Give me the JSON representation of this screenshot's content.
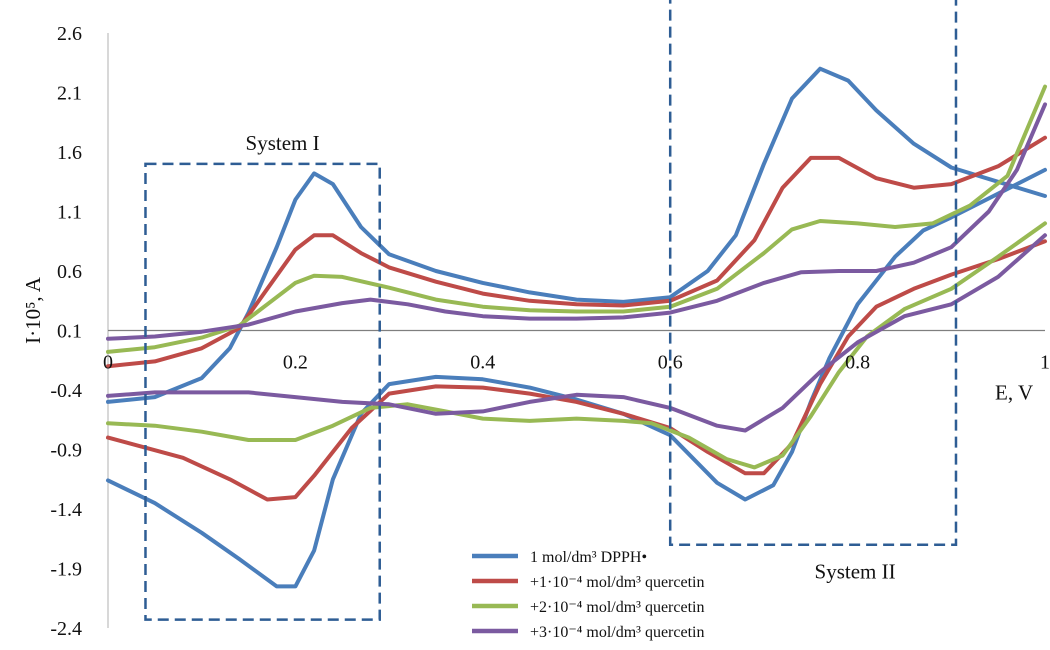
{
  "chart_data": {
    "type": "line",
    "title": "",
    "xlabel": "E, V",
    "ylabel": "I·10⁵, A",
    "xlim": [
      0,
      1
    ],
    "ylim": [
      -2.4,
      2.6
    ],
    "x_ticks": [
      0,
      0.2,
      0.4,
      0.6,
      0.8,
      1
    ],
    "x_tick_labels": [
      "0",
      "0.2",
      "0.4",
      "0.6",
      "0.8",
      "1"
    ],
    "y_ticks": [
      2.6,
      2.1,
      1.6,
      1.1,
      0.6,
      0.1,
      -0.4,
      -0.9,
      -1.4,
      -1.9,
      -2.4
    ],
    "y_tick_labels": [
      "2.6",
      "2.1",
      "1.6",
      "1.1",
      "0.6",
      "0.1",
      "-0.4",
      "-0.9",
      "-1.4",
      "-1.9",
      "-2.4"
    ],
    "grid": false,
    "legend_position": "bottom-center",
    "annotations": [
      {
        "label": "System I",
        "box": {
          "x": [
            0.04,
            0.29
          ],
          "y": [
            -2.33,
            1.5
          ]
        }
      },
      {
        "label": "System II",
        "box": {
          "x": [
            0.6,
            0.905
          ],
          "y": [
            -1.7,
            2.95
          ]
        }
      }
    ],
    "series": [
      {
        "name": "1 mol/dm³ DPPH•",
        "color": "#4a7ebb",
        "forward": [
          [
            0,
            -0.5
          ],
          [
            0.05,
            -0.46
          ],
          [
            0.1,
            -0.3
          ],
          [
            0.13,
            -0.05
          ],
          [
            0.15,
            0.25
          ],
          [
            0.18,
            0.8
          ],
          [
            0.2,
            1.2
          ],
          [
            0.22,
            1.42
          ],
          [
            0.24,
            1.33
          ],
          [
            0.27,
            0.97
          ],
          [
            0.3,
            0.74
          ],
          [
            0.35,
            0.6
          ],
          [
            0.4,
            0.5
          ],
          [
            0.45,
            0.42
          ],
          [
            0.5,
            0.36
          ],
          [
            0.55,
            0.34
          ],
          [
            0.6,
            0.38
          ],
          [
            0.64,
            0.6
          ],
          [
            0.67,
            0.9
          ],
          [
            0.7,
            1.5
          ],
          [
            0.73,
            2.05
          ],
          [
            0.76,
            2.3
          ],
          [
            0.79,
            2.2
          ],
          [
            0.82,
            1.95
          ],
          [
            0.86,
            1.67
          ],
          [
            0.9,
            1.47
          ],
          [
            0.95,
            1.35
          ],
          [
            1,
            1.23
          ]
        ],
        "reverse": [
          [
            1,
            1.45
          ],
          [
            0.95,
            1.25
          ],
          [
            0.9,
            1.05
          ],
          [
            0.87,
            0.94
          ],
          [
            0.84,
            0.72
          ],
          [
            0.8,
            0.32
          ],
          [
            0.77,
            -0.13
          ],
          [
            0.75,
            -0.5
          ],
          [
            0.73,
            -0.92
          ],
          [
            0.71,
            -1.2
          ],
          [
            0.68,
            -1.32
          ],
          [
            0.65,
            -1.18
          ],
          [
            0.6,
            -0.78
          ],
          [
            0.55,
            -0.6
          ],
          [
            0.5,
            -0.48
          ],
          [
            0.45,
            -0.38
          ],
          [
            0.4,
            -0.31
          ],
          [
            0.35,
            -0.29
          ],
          [
            0.3,
            -0.35
          ],
          [
            0.27,
            -0.6
          ],
          [
            0.24,
            -1.15
          ],
          [
            0.22,
            -1.75
          ],
          [
            0.2,
            -2.05
          ],
          [
            0.18,
            -2.05
          ],
          [
            0.14,
            -1.82
          ],
          [
            0.1,
            -1.6
          ],
          [
            0.05,
            -1.35
          ],
          [
            0,
            -1.16
          ]
        ]
      },
      {
        "name": "+1·10⁻⁴ mol/dm³ quercetin",
        "color": "#be4b48",
        "forward": [
          [
            0,
            -0.2
          ],
          [
            0.05,
            -0.16
          ],
          [
            0.1,
            -0.05
          ],
          [
            0.14,
            0.12
          ],
          [
            0.17,
            0.45
          ],
          [
            0.2,
            0.78
          ],
          [
            0.22,
            0.9
          ],
          [
            0.24,
            0.9
          ],
          [
            0.27,
            0.75
          ],
          [
            0.3,
            0.63
          ],
          [
            0.35,
            0.51
          ],
          [
            0.4,
            0.41
          ],
          [
            0.45,
            0.35
          ],
          [
            0.5,
            0.32
          ],
          [
            0.55,
            0.31
          ],
          [
            0.6,
            0.35
          ],
          [
            0.65,
            0.52
          ],
          [
            0.69,
            0.86
          ],
          [
            0.72,
            1.3
          ],
          [
            0.75,
            1.55
          ],
          [
            0.78,
            1.55
          ],
          [
            0.82,
            1.38
          ],
          [
            0.86,
            1.3
          ],
          [
            0.9,
            1.33
          ],
          [
            0.95,
            1.48
          ],
          [
            1,
            1.72
          ]
        ],
        "reverse": [
          [
            1,
            0.85
          ],
          [
            0.95,
            0.7
          ],
          [
            0.9,
            0.57
          ],
          [
            0.86,
            0.45
          ],
          [
            0.82,
            0.3
          ],
          [
            0.79,
            0.05
          ],
          [
            0.76,
            -0.35
          ],
          [
            0.73,
            -0.85
          ],
          [
            0.7,
            -1.1
          ],
          [
            0.68,
            -1.1
          ],
          [
            0.64,
            -0.92
          ],
          [
            0.6,
            -0.72
          ],
          [
            0.55,
            -0.6
          ],
          [
            0.5,
            -0.5
          ],
          [
            0.45,
            -0.43
          ],
          [
            0.4,
            -0.38
          ],
          [
            0.35,
            -0.37
          ],
          [
            0.3,
            -0.43
          ],
          [
            0.26,
            -0.72
          ],
          [
            0.22,
            -1.12
          ],
          [
            0.2,
            -1.3
          ],
          [
            0.17,
            -1.32
          ],
          [
            0.13,
            -1.15
          ],
          [
            0.08,
            -0.97
          ],
          [
            0,
            -0.8
          ]
        ]
      },
      {
        "name": "+2·10⁻⁴ mol/dm³ quercetin",
        "color": "#98b954",
        "forward": [
          [
            0,
            -0.08
          ],
          [
            0.05,
            -0.04
          ],
          [
            0.1,
            0.04
          ],
          [
            0.14,
            0.14
          ],
          [
            0.17,
            0.32
          ],
          [
            0.2,
            0.5
          ],
          [
            0.22,
            0.56
          ],
          [
            0.25,
            0.55
          ],
          [
            0.3,
            0.46
          ],
          [
            0.35,
            0.36
          ],
          [
            0.4,
            0.3
          ],
          [
            0.45,
            0.27
          ],
          [
            0.5,
            0.26
          ],
          [
            0.55,
            0.26
          ],
          [
            0.6,
            0.3
          ],
          [
            0.65,
            0.45
          ],
          [
            0.7,
            0.75
          ],
          [
            0.73,
            0.95
          ],
          [
            0.76,
            1.02
          ],
          [
            0.8,
            1.0
          ],
          [
            0.84,
            0.97
          ],
          [
            0.88,
            1.0
          ],
          [
            0.92,
            1.15
          ],
          [
            0.96,
            1.4
          ],
          [
            1,
            2.15
          ]
        ],
        "reverse": [
          [
            1,
            1.0
          ],
          [
            0.95,
            0.72
          ],
          [
            0.9,
            0.45
          ],
          [
            0.85,
            0.28
          ],
          [
            0.81,
            0.05
          ],
          [
            0.78,
            -0.25
          ],
          [
            0.75,
            -0.62
          ],
          [
            0.72,
            -0.95
          ],
          [
            0.69,
            -1.05
          ],
          [
            0.66,
            -0.98
          ],
          [
            0.62,
            -0.8
          ],
          [
            0.58,
            -0.68
          ],
          [
            0.55,
            -0.66
          ],
          [
            0.5,
            -0.64
          ],
          [
            0.45,
            -0.66
          ],
          [
            0.4,
            -0.64
          ],
          [
            0.36,
            -0.58
          ],
          [
            0.32,
            -0.52
          ],
          [
            0.28,
            -0.55
          ],
          [
            0.24,
            -0.7
          ],
          [
            0.2,
            -0.82
          ],
          [
            0.15,
            -0.82
          ],
          [
            0.1,
            -0.75
          ],
          [
            0.05,
            -0.7
          ],
          [
            0,
            -0.68
          ]
        ]
      },
      {
        "name": "+3·10⁻⁴ mol/dm³ quercetin",
        "color": "#7b5aa0",
        "forward": [
          [
            0,
            0.03
          ],
          [
            0.05,
            0.05
          ],
          [
            0.1,
            0.09
          ],
          [
            0.15,
            0.15
          ],
          [
            0.2,
            0.26
          ],
          [
            0.25,
            0.33
          ],
          [
            0.28,
            0.36
          ],
          [
            0.32,
            0.32
          ],
          [
            0.36,
            0.26
          ],
          [
            0.4,
            0.22
          ],
          [
            0.45,
            0.2
          ],
          [
            0.5,
            0.2
          ],
          [
            0.55,
            0.21
          ],
          [
            0.6,
            0.25
          ],
          [
            0.65,
            0.35
          ],
          [
            0.7,
            0.5
          ],
          [
            0.74,
            0.59
          ],
          [
            0.78,
            0.6
          ],
          [
            0.82,
            0.6
          ],
          [
            0.86,
            0.67
          ],
          [
            0.9,
            0.8
          ],
          [
            0.94,
            1.1
          ],
          [
            0.97,
            1.45
          ],
          [
            1,
            2.0
          ]
        ],
        "reverse": [
          [
            1,
            0.9
          ],
          [
            0.95,
            0.55
          ],
          [
            0.9,
            0.32
          ],
          [
            0.85,
            0.22
          ],
          [
            0.8,
            0.0
          ],
          [
            0.76,
            -0.25
          ],
          [
            0.72,
            -0.55
          ],
          [
            0.68,
            -0.74
          ],
          [
            0.65,
            -0.7
          ],
          [
            0.6,
            -0.55
          ],
          [
            0.55,
            -0.46
          ],
          [
            0.5,
            -0.44
          ],
          [
            0.45,
            -0.5
          ],
          [
            0.4,
            -0.58
          ],
          [
            0.35,
            -0.6
          ],
          [
            0.3,
            -0.52
          ],
          [
            0.25,
            -0.5
          ],
          [
            0.2,
            -0.46
          ],
          [
            0.15,
            -0.42
          ],
          [
            0.1,
            -0.42
          ],
          [
            0.05,
            -0.42
          ],
          [
            0,
            -0.45
          ]
        ]
      }
    ]
  }
}
